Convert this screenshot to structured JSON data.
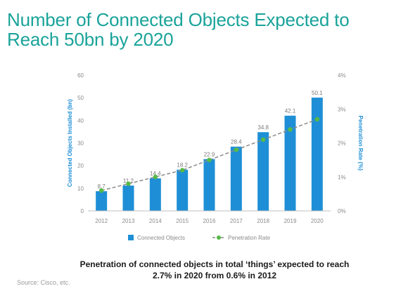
{
  "title": "Number of Connected Objects Expected to Reach 50bn by 2020",
  "caption": "Penetration of connected objects in total ‘things’ expected to reach 2.7% in 2020 from 0.6% in 2012",
  "source": "Source: Cisco, etc.",
  "colors": {
    "bars": "#1e8fd6",
    "line": "#8a8a8a",
    "markers": "#57b947",
    "title": "#1aa39a"
  },
  "chart_data": {
    "type": "bar",
    "categories": [
      "2012",
      "2013",
      "2014",
      "2015",
      "2016",
      "2017",
      "2018",
      "2019",
      "2020"
    ],
    "series": [
      {
        "name": "Connected Objects",
        "values": [
          8.7,
          11.2,
          14.4,
          18.2,
          22.9,
          28.4,
          34.8,
          42.1,
          50.1
        ],
        "axis": "left",
        "type": "bar"
      },
      {
        "name": "Penetration Rate",
        "values": [
          0.6,
          0.8,
          1.0,
          1.2,
          1.5,
          1.8,
          2.1,
          2.4,
          2.7
        ],
        "axis": "right",
        "type": "line"
      }
    ],
    "data_labels": [
      "8.7",
      "11.2",
      "14.4",
      "18.2",
      "22.9",
      "28.4",
      "34.8",
      "42.1",
      "50.1"
    ],
    "ylabel": "Connected Objects Installed (bn)",
    "y2label": "Penetration Rate (%)",
    "ylim": [
      0,
      60
    ],
    "y_ticks": [
      "0",
      "10",
      "20",
      "30",
      "40",
      "50",
      "60"
    ],
    "y2lim": [
      0,
      4
    ],
    "y2_ticks": [
      "0%",
      "1%",
      "2%",
      "3%",
      "4%"
    ],
    "legend": [
      "Connected Objects",
      "Penetration Rate"
    ],
    "legend_position": "bottom",
    "grid": false
  }
}
